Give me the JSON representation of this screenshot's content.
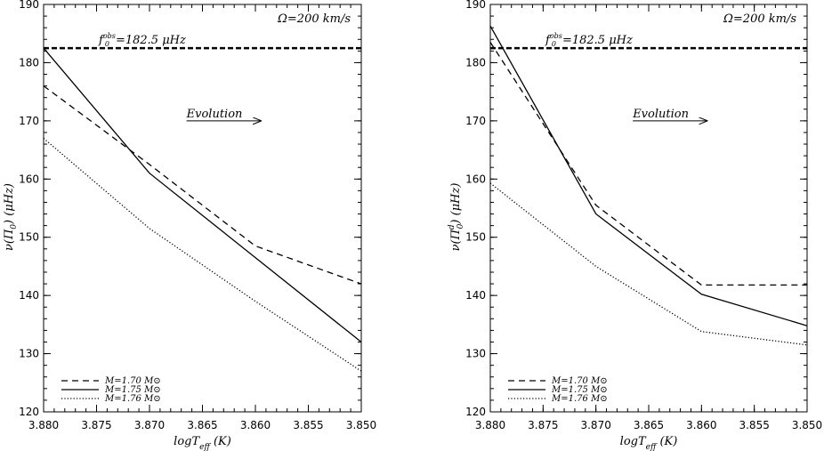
{
  "chart_data": [
    {
      "type": "line",
      "xlabel": "logT_eff (K)",
      "ylabel": "ν(Π_0)   (μHz)",
      "ylabel_parts": {
        "main": "ν(Π",
        "sub": "0",
        "sup": "",
        "close": ")",
        "unit": "(μHz)"
      },
      "xlim": [
        3.88,
        3.85
      ],
      "ylim": [
        120,
        190
      ],
      "xticks": [
        "3.880",
        "3.875",
        "3.870",
        "3.865",
        "3.860",
        "3.855",
        "3.850"
      ],
      "yticks": [
        "120",
        "130",
        "140",
        "150",
        "160",
        "170",
        "180",
        "190"
      ],
      "omega_label": "Ω=200  km/s",
      "fobs": {
        "value": 182.5,
        "label": "f",
        "sub": "0",
        "sup": "obs",
        "rest": "=182.5  μHz"
      },
      "evolution_label": "Evolution",
      "evolution_arrow": {
        "x_start": 3.8665,
        "x_end": 3.8595,
        "y": 170
      },
      "series": [
        {
          "name": "M=1.70 M⊙",
          "style": "dashed",
          "x": [
            3.88,
            3.87,
            3.86,
            3.85
          ],
          "y": [
            176.0,
            162.5,
            148.5,
            142.0
          ]
        },
        {
          "name": "M=1.75 M⊙",
          "style": "solid",
          "x": [
            3.88,
            3.87,
            3.86,
            3.85
          ],
          "y": [
            182.5,
            161.0,
            146.5,
            132.0
          ]
        },
        {
          "name": "M=1.76 M⊙",
          "style": "dotted",
          "x": [
            3.88,
            3.87,
            3.86,
            3.85
          ],
          "y": [
            167.0,
            151.5,
            139.0,
            127.0
          ]
        }
      ]
    },
    {
      "type": "line",
      "xlabel": "logT_eff (K)",
      "ylabel": "ν(Π_0^d)   (μHz)",
      "ylabel_parts": {
        "main": "ν(Π",
        "sub": "0",
        "sup": "d",
        "close": ")",
        "unit": "(μHz)"
      },
      "xlim": [
        3.88,
        3.85
      ],
      "ylim": [
        120,
        190
      ],
      "xticks": [
        "3.880",
        "3.875",
        "3.870",
        "3.865",
        "3.860",
        "3.855",
        "3.850"
      ],
      "yticks": [
        "120",
        "130",
        "140",
        "150",
        "160",
        "170",
        "180",
        "190"
      ],
      "omega_label": "Ω=200  km/s",
      "fobs": {
        "value": 182.5,
        "label": "f",
        "sub": "0",
        "sup": "obs",
        "rest": "=182.5  μHz"
      },
      "evolution_label": "Evolution",
      "evolution_arrow": {
        "x_start": 3.8665,
        "x_end": 3.8595,
        "y": 170
      },
      "series": [
        {
          "name": "M=1.70 M⊙",
          "style": "dashed",
          "x": [
            3.88,
            3.87,
            3.86,
            3.85
          ],
          "y": [
            183.5,
            155.5,
            141.8,
            141.8
          ]
        },
        {
          "name": "M=1.75 M⊙",
          "style": "solid",
          "x": [
            3.88,
            3.87,
            3.86,
            3.85
          ],
          "y": [
            186.3,
            154.0,
            140.2,
            134.8
          ]
        },
        {
          "name": "M=1.76 M⊙",
          "style": "dotted",
          "x": [
            3.88,
            3.87,
            3.86,
            3.85
          ],
          "y": [
            159.3,
            145.0,
            133.8,
            131.5
          ]
        }
      ]
    }
  ]
}
